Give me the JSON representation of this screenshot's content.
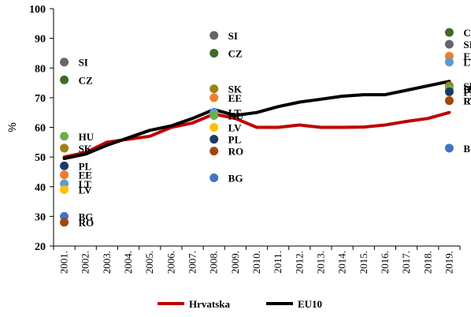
{
  "chart_data": {
    "type": "line",
    "ylabel": "%",
    "ylim": [
      20,
      100
    ],
    "yticks": [
      20,
      30,
      40,
      50,
      60,
      70,
      80,
      90,
      100
    ],
    "categories": [
      "2001.",
      "2002.",
      "2003.",
      "2004.",
      "2005.",
      "2006.",
      "2007.",
      "2008.",
      "2009.",
      "2010.",
      "2011.",
      "2012.",
      "2013.",
      "2014.",
      "2015.",
      "2016.",
      "2017.",
      "2018.",
      "2019."
    ],
    "series": [
      {
        "name": "Hrvatska",
        "color": "#c00000",
        "values": [
          50,
          51.5,
          55,
          56,
          57,
          60,
          61.5,
          64.5,
          63,
          60,
          60,
          60.8,
          60,
          60,
          60.1,
          60.8,
          62,
          63,
          65
        ]
      },
      {
        "name": "EU10",
        "color": "#000000",
        "values": [
          49.5,
          51,
          54,
          56.5,
          59,
          60.5,
          63,
          66,
          64,
          65,
          67,
          68.5,
          69.5,
          70.5,
          71,
          71,
          72.5,
          74,
          75.5
        ]
      }
    ],
    "country_points": [
      {
        "label": "SI",
        "year": "2001.",
        "value": 82,
        "color": "#666666"
      },
      {
        "label": "CZ",
        "year": "2001.",
        "value": 76,
        "color": "#3d6b2a"
      },
      {
        "label": "HU",
        "year": "2001.",
        "value": 57,
        "color": "#6aaf47"
      },
      {
        "label": "SK",
        "year": "2001.",
        "value": 53,
        "color": "#9c8213"
      },
      {
        "label": "PL",
        "year": "2001.",
        "value": 47,
        "color": "#1f3864"
      },
      {
        "label": "EE",
        "year": "2001.",
        "value": 44,
        "color": "#ed7d31"
      },
      {
        "label": "LT",
        "year": "2001.",
        "value": 41,
        "color": "#5b9bd5"
      },
      {
        "label": "LV",
        "year": "2001.",
        "value": 39,
        "color": "#ffc000"
      },
      {
        "label": "BG",
        "year": "2001.",
        "value": 30,
        "color": "#4472c4"
      },
      {
        "label": "RO",
        "year": "2001.",
        "value": 28,
        "color": "#9e480e"
      },
      {
        "label": "SI",
        "year": "2008.",
        "value": 91,
        "color": "#666666"
      },
      {
        "label": "CZ",
        "year": "2008.",
        "value": 85,
        "color": "#3d6b2a"
      },
      {
        "label": "SK",
        "year": "2008.",
        "value": 73,
        "color": "#9c8213"
      },
      {
        "label": "EE",
        "year": "2008.",
        "value": 70,
        "color": "#ed7d31"
      },
      {
        "label": "LT",
        "year": "2008.",
        "value": 65,
        "color": "#5b9bd5"
      },
      {
        "label": "HU",
        "year": "2008.",
        "value": 64,
        "color": "#6aaf47"
      },
      {
        "label": "LV",
        "year": "2008.",
        "value": 60,
        "color": "#ffc000"
      },
      {
        "label": "PL",
        "year": "2008.",
        "value": 56,
        "color": "#1f3864"
      },
      {
        "label": "RO",
        "year": "2008.",
        "value": 52,
        "color": "#9e480e"
      },
      {
        "label": "BG",
        "year": "2008.",
        "value": 43,
        "color": "#4472c4"
      },
      {
        "label": "CZ",
        "year": "2019.",
        "value": 92,
        "color": "#3d6b2a"
      },
      {
        "label": "SI",
        "year": "2019.",
        "value": 88,
        "color": "#666666"
      },
      {
        "label": "EE",
        "year": "2019.",
        "value": 84,
        "color": "#ed7d31"
      },
      {
        "label": "LT",
        "year": "2019.",
        "value": 82,
        "color": "#5b9bd5"
      },
      {
        "label": "SK",
        "year": "2019.",
        "value": 74,
        "color": "#9c8213"
      },
      {
        "label": "HU",
        "year": "2019.",
        "value": 73,
        "color": "#6aaf47"
      },
      {
        "label": "PL",
        "year": "2019.",
        "value": 72,
        "color": "#1f3864"
      },
      {
        "label": "LV",
        "year": "2019.",
        "value": 69,
        "color": "#ffc000"
      },
      {
        "label": "RO",
        "year": "2019.",
        "value": 69,
        "color": "#9e480e"
      },
      {
        "label": "BG",
        "year": "2019.",
        "value": 53,
        "color": "#4472c4"
      }
    ],
    "legend_position": "bottom"
  }
}
